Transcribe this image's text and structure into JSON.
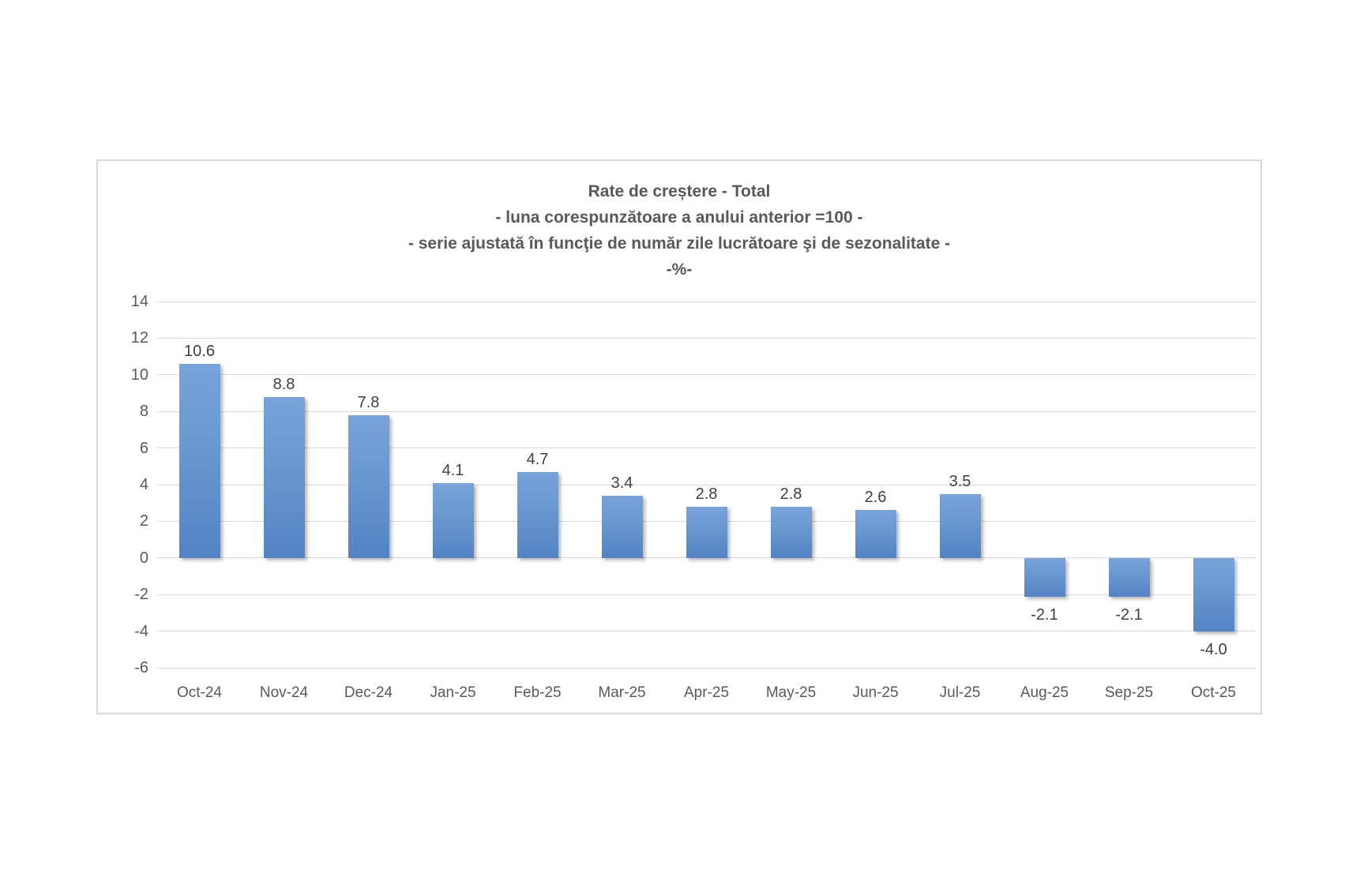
{
  "chart_data": {
    "type": "bar",
    "title_lines": [
      "Rate de creștere - Total",
      "- luna corespunzătoare a anului anterior =100 -",
      "- serie ajustată în funcţie de număr zile lucrătoare şi de sezonalitate -",
      "-%-"
    ],
    "categories": [
      "Oct-24",
      "Nov-24",
      "Dec-24",
      "Jan-25",
      "Feb-25",
      "Mar-25",
      "Apr-25",
      "May-25",
      "Jun-25",
      "Jul-25",
      "Aug-25",
      "Sep-25",
      "Oct-25"
    ],
    "values": [
      10.6,
      8.8,
      7.8,
      4.1,
      4.7,
      3.4,
      2.8,
      2.8,
      2.6,
      3.5,
      -2.1,
      -2.1,
      -4.0
    ],
    "value_labels": [
      "10.6",
      "8.8",
      "7.8",
      "4.1",
      "4.7",
      "3.4",
      "2.8",
      "2.8",
      "2.6",
      "3.5",
      "-2.1",
      "-2.1",
      "-4.0"
    ],
    "y_ticks": [
      14,
      12,
      10,
      8,
      6,
      4,
      2,
      0,
      -2,
      -4,
      -6
    ],
    "ylim": [
      -6,
      14
    ],
    "grid": true,
    "legend": "none",
    "xlabel": "",
    "ylabel": "",
    "colors": {
      "bar_top": "#79A3DA",
      "bar_bottom": "#5383C4",
      "gridline": "#D9D9D9",
      "axis_text": "#595959",
      "value_text": "#404040",
      "frame_border": "#D9D9D9"
    }
  }
}
